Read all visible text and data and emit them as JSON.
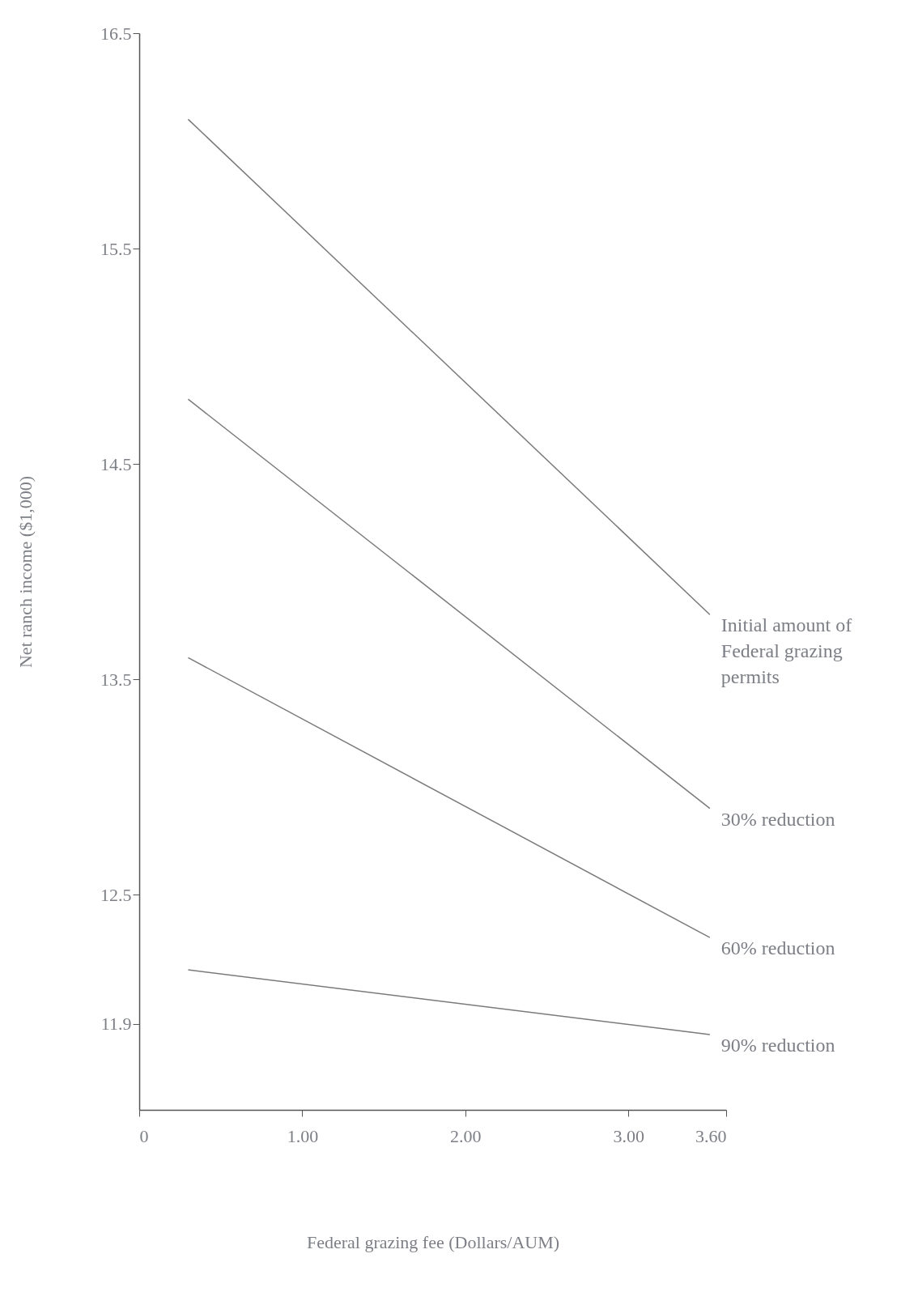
{
  "chart_data": {
    "type": "line",
    "xlabel": "Federal grazing fee (Dollars/AUM)",
    "ylabel": "Net ranch income ($1,000)",
    "x": [
      0.3,
      3.5
    ],
    "series": [
      {
        "name": "Initial amount of Federal grazing permits",
        "color": "#7a7a7a",
        "values": [
          16.1,
          13.8
        ]
      },
      {
        "name": "30% reduction",
        "color": "#7a7a7a",
        "values": [
          14.8,
          12.9
        ]
      },
      {
        "name": "60% reduction",
        "color": "#7a7a7a",
        "values": [
          13.6,
          12.3
        ]
      },
      {
        "name": "90% reduction",
        "color": "#7a7a7a",
        "values": [
          12.15,
          11.85
        ]
      }
    ],
    "xlim": [
      0,
      3.6
    ],
    "ylim": [
      11.5,
      16.5
    ],
    "xticks": [
      0,
      {
        "value": 1,
        "label": "1.00"
      },
      {
        "value": 2,
        "label": "2.00"
      },
      {
        "value": 3,
        "label": "3.00"
      },
      {
        "value": 3.6,
        "label": "3.60"
      }
    ],
    "yticks": [
      11.9,
      12.5,
      13.5,
      14.5,
      15.5,
      16.5
    ],
    "grid": false
  }
}
